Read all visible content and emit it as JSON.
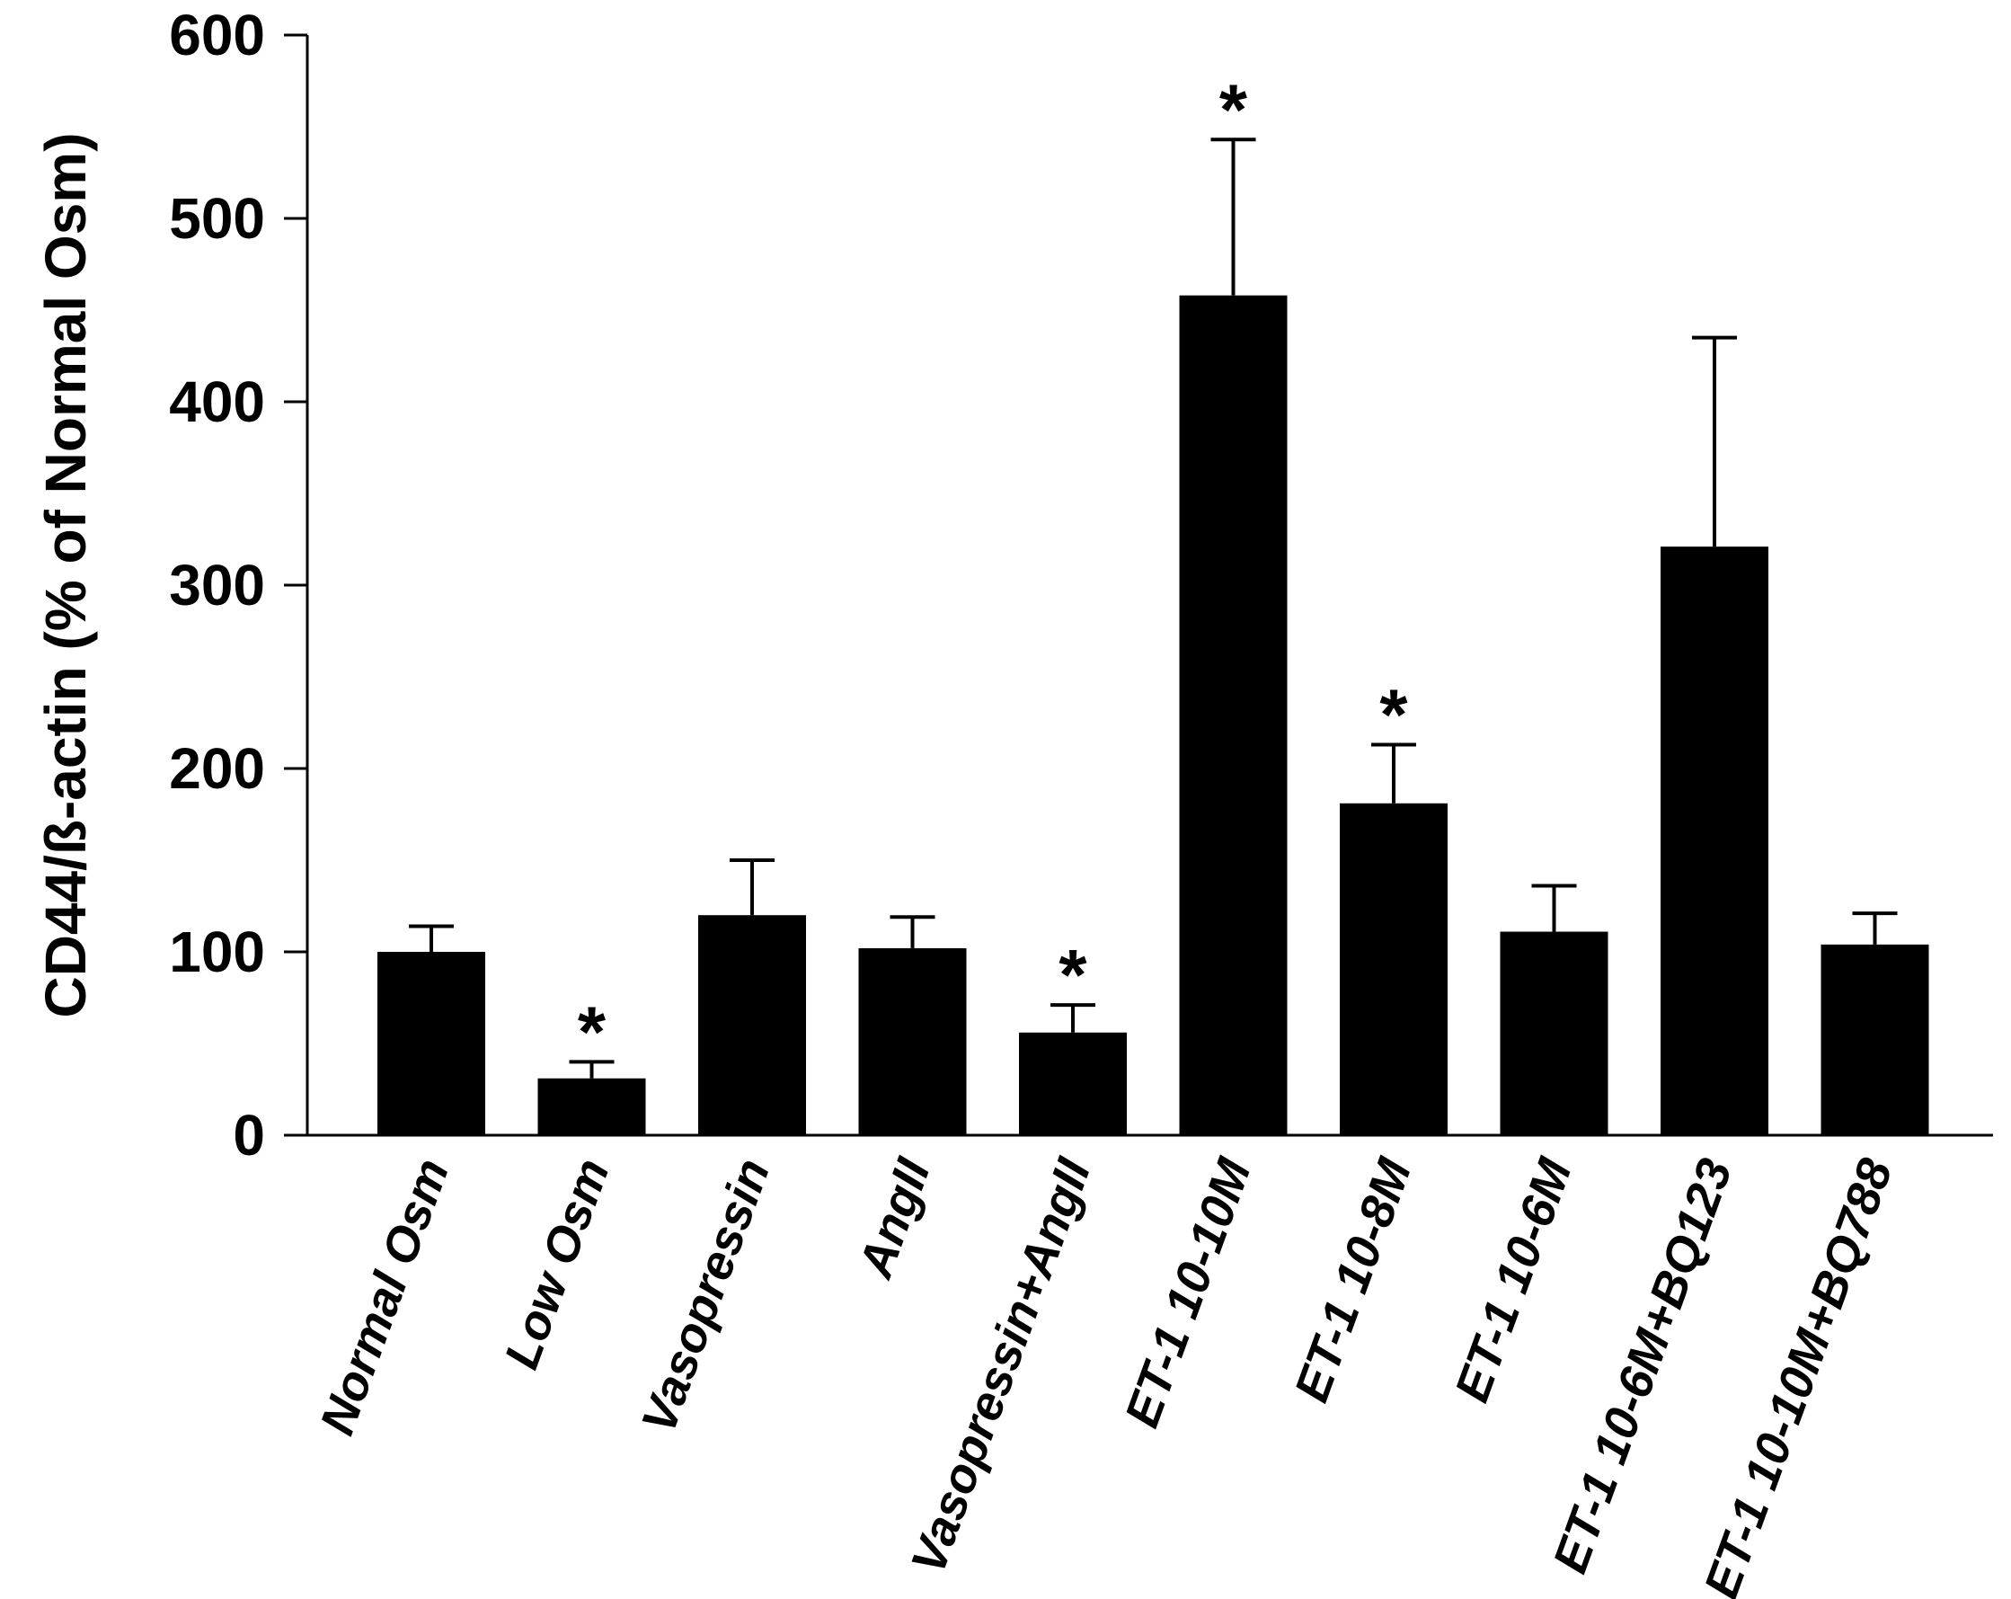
{
  "chart_data": {
    "type": "bar",
    "title": "",
    "xlabel": "",
    "ylabel": "CD44/ß-actin (% of Normal Osm)",
    "ylim": [
      0,
      600
    ],
    "yticks": [
      0,
      100,
      200,
      300,
      400,
      500,
      600
    ],
    "grid": false,
    "legend": "none",
    "categories": [
      "Normal Osm",
      "Low Osm",
      "Vasopressin",
      "AngII",
      "Vasopressin+AngII",
      "ET-1 10-10M",
      "ET-1 10-8M",
      "ET-1 10-6M",
      "ET-1 10-6M+BQ123",
      "ET-1 10-10M+BQ788"
    ],
    "values": [
      100,
      31,
      120,
      102,
      56,
      458,
      181,
      111,
      321,
      104
    ],
    "error_upper": [
      14,
      9,
      30,
      17,
      15,
      85,
      32,
      25,
      114,
      17
    ],
    "significance": [
      "",
      "*",
      "",
      "",
      "*",
      "*",
      "*",
      "",
      "",
      ""
    ],
    "bar_color": "#000000"
  }
}
